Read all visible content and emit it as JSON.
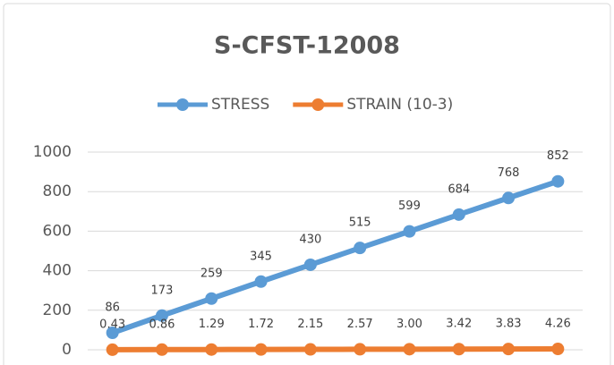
{
  "chart_data": {
    "type": "line",
    "title": "S-CFST-12008",
    "categories": [
      null,
      null,
      null,
      null,
      null,
      null,
      null,
      null,
      null,
      null
    ],
    "series": [
      {
        "name": "STRESS",
        "color": "#5b9bd5",
        "values": [
          86,
          173,
          259,
          345,
          430,
          515,
          599,
          684,
          768,
          852
        ]
      },
      {
        "name": "STRAIN (10-3)",
        "color": "#ed7d31",
        "values": [
          0.43,
          0.86,
          1.29,
          1.72,
          2.15,
          2.57,
          3.0,
          3.42,
          3.83,
          4.26
        ],
        "value_labels": [
          "0.43",
          "0.86",
          "1.29",
          "1.72",
          "2.15",
          "2.57",
          "3.00",
          "3.42",
          "3.83",
          "4.26"
        ]
      }
    ],
    "ylim": [
      0,
      1000
    ],
    "yticks": [
      0,
      200,
      400,
      600,
      800,
      1000
    ],
    "grid": true,
    "legend": "top"
  }
}
